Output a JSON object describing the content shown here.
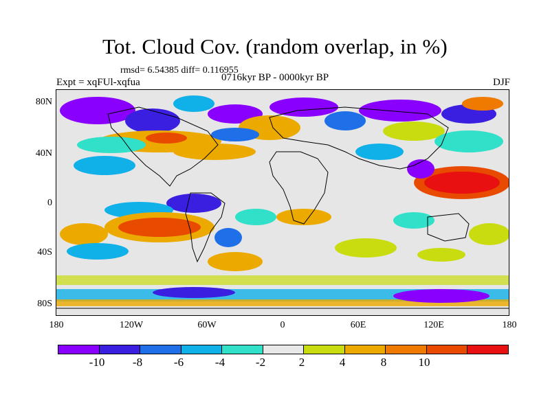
{
  "title": "Tot. Cloud Cov. (random overlap, in %)",
  "stats": "rmsd= 6.54385 diff= 0.116955",
  "experiment": "Expt = xqFUl-xqfua",
  "period": "0716kyr BP - 0000kyr BP",
  "season": "DJF",
  "lat_labels": [
    "80N",
    "40N",
    "0",
    "40S",
    "80S"
  ],
  "lon_labels": [
    "180",
    "120W",
    "60W",
    "0",
    "60E",
    "120E",
    "180"
  ],
  "colorbar": {
    "labels": [
      "-10",
      "-8",
      "-6",
      "-4",
      "-2",
      "2",
      "4",
      "8",
      "10"
    ],
    "colors": [
      "#8a00ff",
      "#3a1fe0",
      "#1e6fe8",
      "#10b0e8",
      "#30e0c8",
      "#e8e8e8",
      "#c8dc10",
      "#ecaa00",
      "#f07a00",
      "#e84a00",
      "#e81010"
    ]
  }
}
